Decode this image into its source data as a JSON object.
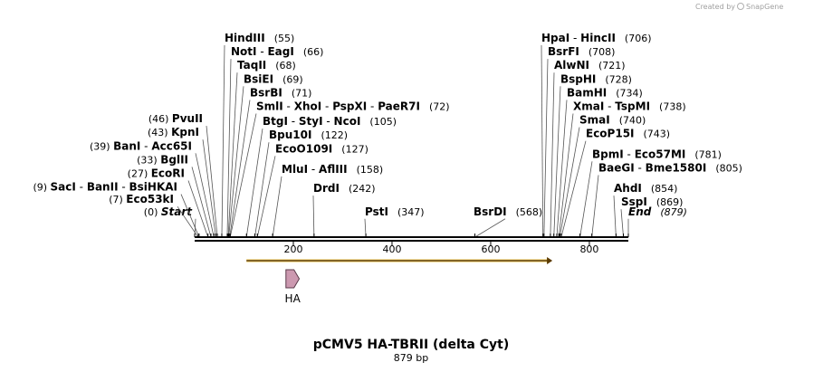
{
  "credit": {
    "prefix": "Created by",
    "brand": "SnapGene"
  },
  "map": {
    "title": "pCMV5 HA-TBRII (delta Cyt)",
    "length_label": "879 bp",
    "length_bp": 879,
    "ticks": [
      200,
      400,
      600,
      800
    ]
  },
  "sites": [
    {
      "pos": 0,
      "side": "left",
      "names": [
        "Start"
      ],
      "label": "(0)",
      "italic": true
    },
    {
      "pos": 7,
      "side": "left",
      "names": [
        "Eco53kI"
      ],
      "label": "(7)"
    },
    {
      "pos": 9,
      "side": "left",
      "names": [
        "SacI",
        "BanII",
        "BsiHKAI"
      ],
      "label": "(9)"
    },
    {
      "pos": 27,
      "side": "left",
      "names": [
        "EcoRI"
      ],
      "label": "(27)"
    },
    {
      "pos": 33,
      "side": "left",
      "names": [
        "BglII"
      ],
      "label": "(33)"
    },
    {
      "pos": 39,
      "side": "left",
      "names": [
        "BanI",
        "Acc65I"
      ],
      "label": "(39)"
    },
    {
      "pos": 43,
      "side": "left",
      "names": [
        "KpnI"
      ],
      "label": "(43)"
    },
    {
      "pos": 46,
      "side": "left",
      "names": [
        "PvuII"
      ],
      "label": "(46)"
    },
    {
      "pos": 55,
      "side": "right",
      "names": [
        "HindIII"
      ],
      "label": "(55)"
    },
    {
      "pos": 66,
      "side": "right",
      "names": [
        "NotI",
        "EagI"
      ],
      "label": "(66)"
    },
    {
      "pos": 68,
      "side": "right",
      "names": [
        "TaqII"
      ],
      "label": "(68)"
    },
    {
      "pos": 69,
      "side": "right",
      "names": [
        "BsiEI"
      ],
      "label": "(69)"
    },
    {
      "pos": 71,
      "side": "right",
      "names": [
        "BsrBI"
      ],
      "label": "(71)"
    },
    {
      "pos": 72,
      "side": "right",
      "names": [
        "SmlI",
        "XhoI",
        "PspXI",
        "PaeR7I"
      ],
      "label": "(72)"
    },
    {
      "pos": 105,
      "side": "right",
      "names": [
        "BtgI",
        "StyI",
        "NcoI"
      ],
      "label": "(105)"
    },
    {
      "pos": 122,
      "side": "right",
      "names": [
        "Bpu10I"
      ],
      "label": "(122)"
    },
    {
      "pos": 127,
      "side": "right",
      "names": [
        "EcoO109I"
      ],
      "label": "(127)"
    },
    {
      "pos": 158,
      "side": "right",
      "names": [
        "MluI",
        "AflIII"
      ],
      "label": "(158)"
    },
    {
      "pos": 242,
      "side": "right",
      "names": [
        "DrdI"
      ],
      "label": "(242)"
    },
    {
      "pos": 347,
      "side": "right",
      "names": [
        "PstI"
      ],
      "label": "(347)"
    },
    {
      "pos": 568,
      "side": "left",
      "names": [
        "BsrDI"
      ],
      "label": "(568)"
    },
    {
      "pos": 706,
      "side": "right",
      "names": [
        "HpaI",
        "HincII"
      ],
      "label": "(706)"
    },
    {
      "pos": 708,
      "side": "right",
      "names": [
        "BsrFI"
      ],
      "label": "(708)"
    },
    {
      "pos": 721,
      "side": "right",
      "names": [
        "AlwNI"
      ],
      "label": "(721)"
    },
    {
      "pos": 728,
      "side": "right",
      "names": [
        "BspHI"
      ],
      "label": "(728)"
    },
    {
      "pos": 734,
      "side": "right",
      "names": [
        "BamHI"
      ],
      "label": "(734)"
    },
    {
      "pos": 738,
      "side": "right",
      "names": [
        "XmaI",
        "TspMI"
      ],
      "label": "(738)"
    },
    {
      "pos": 740,
      "side": "right",
      "names": [
        "SmaI"
      ],
      "label": "(740)"
    },
    {
      "pos": 743,
      "side": "right",
      "names": [
        "EcoP15I"
      ],
      "label": "(743)"
    },
    {
      "pos": 781,
      "side": "right",
      "names": [
        "BpmI",
        "Eco57MI"
      ],
      "label": "(781)"
    },
    {
      "pos": 805,
      "side": "right",
      "names": [
        "BaeGI",
        "Bme1580I"
      ],
      "label": "(805)"
    },
    {
      "pos": 854,
      "side": "right",
      "names": [
        "AhdI"
      ],
      "label": "(854)"
    },
    {
      "pos": 869,
      "side": "right",
      "names": [
        "SspI"
      ],
      "label": "(869)"
    },
    {
      "pos": 879,
      "side": "right",
      "names": [
        "End"
      ],
      "label": "(879)",
      "italic": true
    }
  ],
  "features": [
    {
      "name": "",
      "start": 105,
      "end": 725,
      "color": "#f0a000",
      "type": "orf"
    },
    {
      "name": "HA",
      "start": 185,
      "end": 212,
      "color": "#cc99b0",
      "type": "tag"
    }
  ]
}
